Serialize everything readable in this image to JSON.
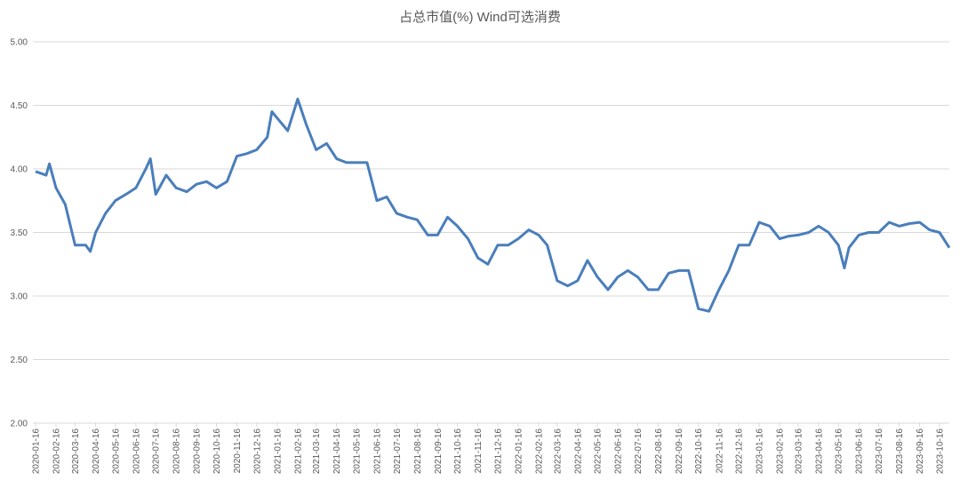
{
  "chart_data": {
    "type": "line",
    "title": "占总市值(%) Wind可选消费",
    "x": [
      "2020-01-16",
      "2020-02-01",
      "2020-02-06",
      "2020-02-16",
      "2020-03-01",
      "2020-03-16",
      "2020-04-01",
      "2020-04-08",
      "2020-04-16",
      "2020-05-01",
      "2020-05-16",
      "2020-06-01",
      "2020-06-16",
      "2020-07-01",
      "2020-07-08",
      "2020-07-16",
      "2020-08-01",
      "2020-08-16",
      "2020-09-01",
      "2020-09-16",
      "2020-10-01",
      "2020-10-16",
      "2020-11-01",
      "2020-11-16",
      "2020-12-01",
      "2020-12-16",
      "2021-01-01",
      "2021-01-08",
      "2021-01-16",
      "2021-02-01",
      "2021-02-16",
      "2021-03-01",
      "2021-03-16",
      "2021-04-01",
      "2021-04-16",
      "2021-05-01",
      "2021-05-16",
      "2021-06-01",
      "2021-06-16",
      "2021-07-01",
      "2021-07-16",
      "2021-08-01",
      "2021-08-16",
      "2021-09-01",
      "2021-09-16",
      "2021-10-01",
      "2021-10-16",
      "2021-11-01",
      "2021-11-16",
      "2021-12-01",
      "2021-12-16",
      "2022-01-01",
      "2022-01-16",
      "2022-02-01",
      "2022-02-16",
      "2022-03-01",
      "2022-03-16",
      "2022-04-01",
      "2022-04-16",
      "2022-05-01",
      "2022-05-16",
      "2022-06-01",
      "2022-06-16",
      "2022-07-01",
      "2022-07-16",
      "2022-08-01",
      "2022-08-16",
      "2022-09-01",
      "2022-09-16",
      "2022-10-01",
      "2022-10-16",
      "2022-11-01",
      "2022-11-16",
      "2022-12-01",
      "2022-12-16",
      "2023-01-01",
      "2023-01-16",
      "2023-02-01",
      "2023-02-16",
      "2023-03-01",
      "2023-03-16",
      "2023-04-01",
      "2023-04-16",
      "2023-05-01",
      "2023-05-16",
      "2023-05-25",
      "2023-06-01",
      "2023-06-16",
      "2023-07-01",
      "2023-07-16",
      "2023-08-01",
      "2023-08-16",
      "2023-09-01",
      "2023-09-16",
      "2023-10-01",
      "2023-10-16",
      "2023-10-31"
    ],
    "series": [
      {
        "name": "Wind可选消费",
        "color": "#4a7ebb",
        "values": [
          3.98,
          3.95,
          4.04,
          3.85,
          3.72,
          3.4,
          3.4,
          3.35,
          3.5,
          3.65,
          3.75,
          3.8,
          3.85,
          4.0,
          4.08,
          3.8,
          3.95,
          3.85,
          3.82,
          3.88,
          3.9,
          3.85,
          3.9,
          4.1,
          4.12,
          4.15,
          4.25,
          4.45,
          4.4,
          4.3,
          4.55,
          4.35,
          4.15,
          4.2,
          4.08,
          4.05,
          4.05,
          4.05,
          3.75,
          3.78,
          3.65,
          3.62,
          3.6,
          3.48,
          3.48,
          3.62,
          3.55,
          3.45,
          3.3,
          3.25,
          3.4,
          3.4,
          3.45,
          3.52,
          3.48,
          3.4,
          3.12,
          3.08,
          3.12,
          3.28,
          3.15,
          3.05,
          3.15,
          3.2,
          3.15,
          3.05,
          3.05,
          3.18,
          3.2,
          3.2,
          2.9,
          2.88,
          3.05,
          3.2,
          3.4,
          3.4,
          3.58,
          3.55,
          3.45,
          3.47,
          3.48,
          3.5,
          3.55,
          3.5,
          3.4,
          3.22,
          3.38,
          3.48,
          3.5,
          3.5,
          3.58,
          3.55,
          3.57,
          3.58,
          3.52,
          3.5,
          3.38
        ]
      }
    ],
    "xlim": [
      "2020-01-12",
      "2023-10-31"
    ],
    "xticks": [
      "2020-01-16",
      "2020-02-16",
      "2020-03-16",
      "2020-04-16",
      "2020-05-16",
      "2020-06-16",
      "2020-07-16",
      "2020-08-16",
      "2020-09-16",
      "2020-10-16",
      "2020-11-16",
      "2020-12-16",
      "2021-01-16",
      "2021-02-16",
      "2021-03-16",
      "2021-04-16",
      "2021-05-16",
      "2021-06-16",
      "2021-07-16",
      "2021-08-16",
      "2021-09-16",
      "2021-10-16",
      "2021-11-16",
      "2021-12-16",
      "2022-01-16",
      "2022-02-16",
      "2022-03-16",
      "2022-04-16",
      "2022-05-16",
      "2022-06-16",
      "2022-07-16",
      "2022-08-16",
      "2022-09-16",
      "2022-10-16",
      "2022-11-16",
      "2022-12-16",
      "2023-01-16",
      "2023-02-16",
      "2023-03-16",
      "2023-04-16",
      "2023-05-16",
      "2023-06-16",
      "2023-07-16",
      "2023-08-16",
      "2023-09-16",
      "2023-10-16"
    ],
    "ylim": [
      2,
      5
    ],
    "yticks": [
      {
        "value": 2,
        "label": "2.00"
      },
      {
        "value": 2.5,
        "label": "2.50"
      },
      {
        "value": 3,
        "label": "3.00"
      },
      {
        "value": 3.5,
        "label": "3.50"
      },
      {
        "value": 4,
        "label": "4.00"
      },
      {
        "value": 4.5,
        "label": "4.50"
      },
      {
        "value": 5,
        "label": "5.00"
      }
    ],
    "grid": true
  }
}
